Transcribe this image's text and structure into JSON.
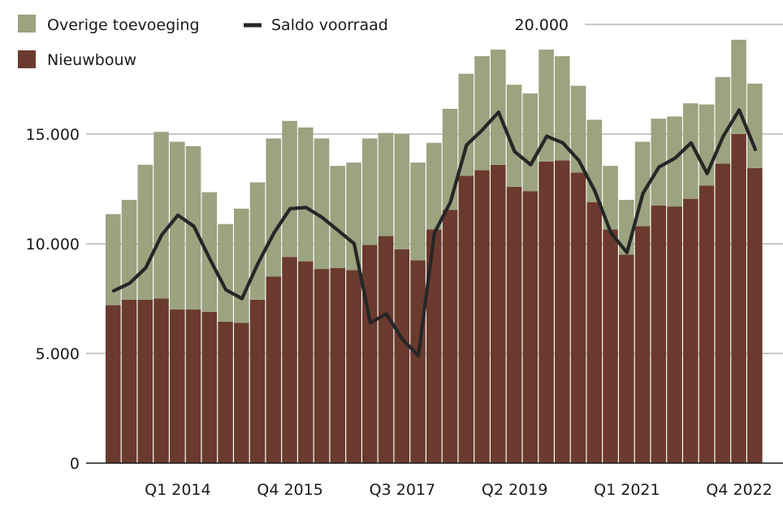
{
  "chart_data": {
    "type": "bar",
    "stacked": true,
    "title": "",
    "xlabel": "",
    "ylabel": "",
    "ylim": [
      0,
      20000
    ],
    "grid": true,
    "legend_position": "top-left",
    "y_ticks": [
      {
        "value": 0,
        "label": "0"
      },
      {
        "value": 5000,
        "label": "5.000"
      },
      {
        "value": 10000,
        "label": "10.000"
      },
      {
        "value": 15000,
        "label": "15.000"
      },
      {
        "value": 20000,
        "label": "20.000"
      }
    ],
    "x_tick_labels": [
      {
        "index": 4,
        "label": "Q1 2014"
      },
      {
        "index": 11,
        "label": "Q4 2015"
      },
      {
        "index": 18,
        "label": "Q3 2017"
      },
      {
        "index": 25,
        "label": "Q2 2019"
      },
      {
        "index": 32,
        "label": "Q1 2021"
      },
      {
        "index": 39,
        "label": "Q4 2022"
      }
    ],
    "series": [
      {
        "name": "Nieuwbouw",
        "kind": "bar",
        "color": "#6b3a2e",
        "values": [
          7200,
          7450,
          7450,
          7500,
          7000,
          7000,
          6900,
          6450,
          6400,
          7450,
          8500,
          9400,
          9200,
          8850,
          8900,
          8800,
          9950,
          10350,
          9750,
          9250,
          10650,
          11550,
          13100,
          13350,
          13600,
          12600,
          12400,
          13750,
          13800,
          13250,
          11900,
          10650,
          9500,
          10800,
          11750,
          11700,
          12050,
          12650,
          13650,
          15000,
          13450
        ]
      },
      {
        "name": "Overige toevoeging",
        "kind": "bar",
        "color": "#9ba37f",
        "values": [
          4150,
          4550,
          6150,
          7600,
          7650,
          7450,
          5450,
          4450,
          5200,
          5350,
          6300,
          6200,
          6100,
          5950,
          4650,
          4900,
          4850,
          4700,
          5250,
          4450,
          3950,
          4600,
          4650,
          5200,
          5250,
          4650,
          4450,
          5100,
          4750,
          3950,
          3750,
          2900,
          2500,
          3850,
          3950,
          4100,
          4350,
          3700,
          3950,
          4300,
          3850
        ]
      },
      {
        "name": "Saldo voorraad",
        "kind": "line",
        "color": "#262626",
        "values": [
          7850,
          8200,
          8900,
          10400,
          11300,
          10800,
          9300,
          7900,
          7500,
          9100,
          10500,
          11600,
          11650,
          11200,
          10600,
          10000,
          6400,
          6800,
          5650,
          4900,
          10500,
          11900,
          14500,
          15200,
          16000,
          14200,
          13600,
          14900,
          14600,
          13800,
          12400,
          10500,
          9600,
          12300,
          13500,
          13900,
          14600,
          13200,
          14900,
          16100,
          14300
        ]
      }
    ]
  }
}
